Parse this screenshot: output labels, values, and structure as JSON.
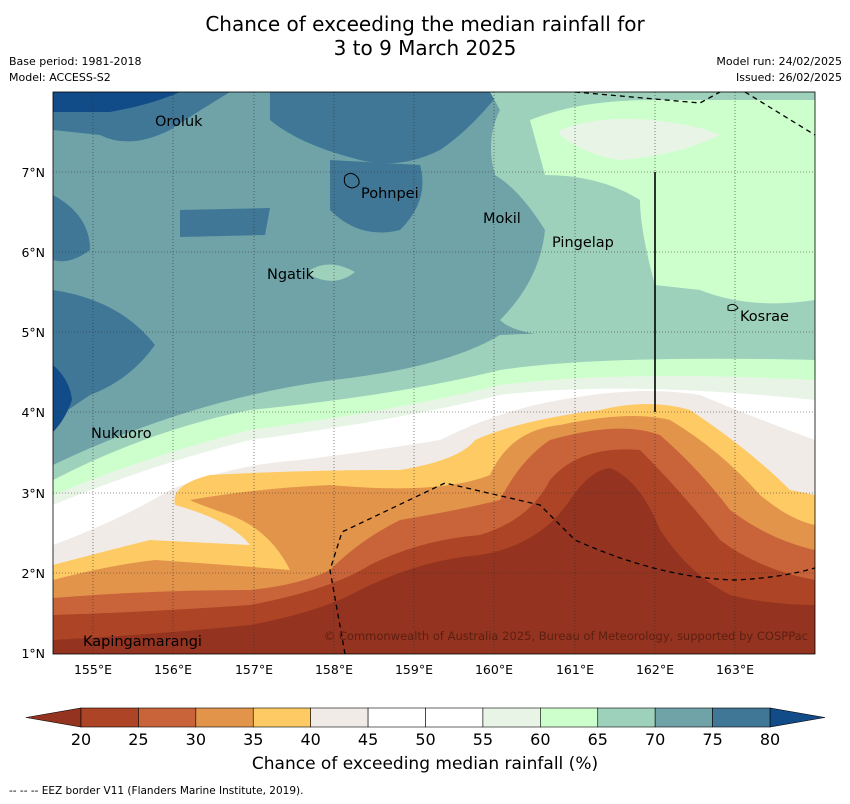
{
  "title_line1": "Chance of exceeding the median rainfall for",
  "title_line2": "3 to 9 March 2025",
  "meta_left": [
    "Base period: 1981-2018",
    "Model: ACCESS-S2"
  ],
  "meta_right": [
    "Model run: 24/02/2025",
    "Issued: 26/02/2025"
  ],
  "lat_ticks": [
    "7°N",
    "6°N",
    "5°N",
    "4°N",
    "3°N",
    "2°N",
    "1°N"
  ],
  "lon_ticks": [
    "155°E",
    "156°E",
    "157°E",
    "158°E",
    "159°E",
    "160°E",
    "161°E",
    "162°E",
    "163°E"
  ],
  "places": [
    "Oroluk",
    "Pohnpei",
    "Mokil",
    "Pingelap",
    "Ngatik",
    "Kosrae",
    "Nukuoro",
    "Kapingamarangi"
  ],
  "copyright": "© Commonwealth of Australia 2025, Bureau of Meteorology, supported by COSPPac",
  "colorbar_ticks": [
    "20",
    "25",
    "30",
    "35",
    "40",
    "45",
    "50",
    "55",
    "60",
    "65",
    "70",
    "75",
    "80"
  ],
  "colorbar_colors": [
    "#ac4425",
    "#c9643a",
    "#e2944a",
    "#fdca64",
    "#f0ebe6",
    "#ffffff",
    "#ffffff",
    "#e8f5e6",
    "#ccffcc",
    "#9ed1bb",
    "#6fa3a8",
    "#407797"
  ],
  "extend_low_color": "#953321",
  "extend_high_color": "#114c88",
  "colorbar_label": "Chance of exceeding median rainfall (%)",
  "footer": "--  --  -- EEZ border V11 (Flanders Marine Institute, 2019)."
}
